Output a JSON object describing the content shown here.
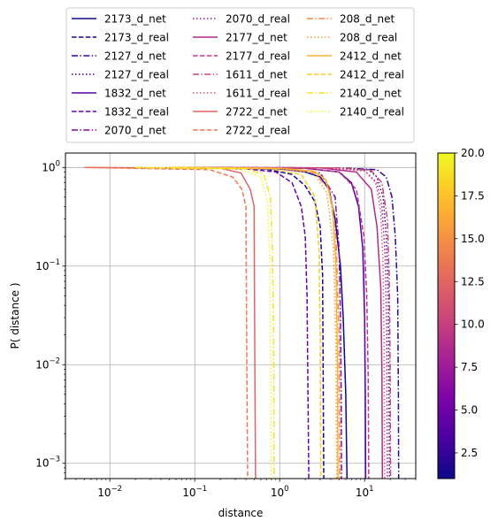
{
  "chart_data": {
    "type": "line",
    "title": "",
    "xlabel": "distance",
    "ylabel": "P( distance )",
    "xscale": "log",
    "yscale": "log",
    "xlim": [
      0.003,
      40
    ],
    "ylim": [
      0.0007,
      1.4
    ],
    "x_ticks": [
      {
        "value": 0.01,
        "base": "10",
        "exp": "−2"
      },
      {
        "value": 0.1,
        "base": "10",
        "exp": "−1"
      },
      {
        "value": 1,
        "base": "10",
        "exp": "0"
      },
      {
        "value": 10,
        "base": "10",
        "exp": "1"
      }
    ],
    "y_ticks": [
      {
        "value": 0.001,
        "base": "10",
        "exp": "−3"
      },
      {
        "value": 0.01,
        "base": "10",
        "exp": "−2"
      },
      {
        "value": 0.1,
        "base": "10",
        "exp": "−1"
      },
      {
        "value": 1,
        "base": "10",
        "exp": "0"
      }
    ],
    "grid": true,
    "legend_position": "top",
    "colorbar": {
      "min": 1,
      "max": 20,
      "ticks": [
        "2.5",
        "5.0",
        "7.5",
        "10.0",
        "12.5",
        "15.0",
        "17.5",
        "20.0"
      ],
      "colormap": "plasma"
    },
    "series": [
      {
        "name": "2173_d_net",
        "color": "#0d0887",
        "dash": "solid",
        "x": [
          0.05,
          1.0,
          2.0,
          3.0,
          3.8,
          4.5,
          5.2,
          5.6,
          6.0,
          6.2
        ],
        "y": [
          1.0,
          0.97,
          0.9,
          0.8,
          0.6,
          0.3,
          0.1,
          0.03,
          0.005,
          0.0007
        ]
      },
      {
        "name": "2173_d_real",
        "color": "#1b068d",
        "dash": "dashed",
        "x": [
          0.05,
          0.7,
          1.4,
          2.0,
          2.6,
          3.0,
          3.2,
          3.25,
          3.3
        ],
        "y": [
          1.0,
          0.96,
          0.85,
          0.65,
          0.45,
          0.25,
          0.08,
          0.01,
          0.0007
        ]
      },
      {
        "name": "2127_d_net",
        "color": "#330597",
        "dash": "dashdot",
        "x": [
          0.05,
          5.0,
          14.0,
          18.0,
          21.0,
          23.0,
          24.5,
          25.0,
          25.2
        ],
        "y": [
          1.0,
          0.99,
          0.95,
          0.8,
          0.5,
          0.2,
          0.05,
          0.005,
          0.0007
        ]
      },
      {
        "name": "2127_d_real",
        "color": "#41049d",
        "dash": "dotted",
        "x": [
          0.05,
          4.0,
          11.0,
          14.0,
          16.5,
          18.0,
          19.0,
          19.4,
          19.6
        ],
        "y": [
          1.0,
          0.99,
          0.95,
          0.8,
          0.5,
          0.2,
          0.05,
          0.005,
          0.0007
        ]
      },
      {
        "name": "1832_d_net",
        "color": "#5302a3",
        "dash": "solid",
        "x": [
          0.05,
          2.0,
          5.0,
          7.0,
          8.5,
          9.5,
          10.0,
          10.2,
          10.3
        ],
        "y": [
          1.0,
          0.98,
          0.9,
          0.7,
          0.4,
          0.15,
          0.03,
          0.005,
          0.0007
        ]
      },
      {
        "name": "1832_d_real",
        "color": "#6a00a8",
        "dash": "dashed",
        "x": [
          0.05,
          0.4,
          0.9,
          1.4,
          1.8,
          2.0,
          2.1,
          2.15,
          2.2
        ],
        "y": [
          1.0,
          0.97,
          0.9,
          0.7,
          0.4,
          0.2,
          0.05,
          0.006,
          0.0007
        ]
      },
      {
        "name": "2070_d_net",
        "color": "#8606a6",
        "dash": "dashdot",
        "x": [
          0.05,
          1.0,
          3.0,
          4.5,
          5.0,
          5.2,
          5.3,
          5.35
        ],
        "y": [
          1.0,
          0.97,
          0.88,
          0.5,
          0.15,
          0.03,
          0.005,
          0.0007
        ]
      },
      {
        "name": "2070_d_real",
        "color": "#a11b9b",
        "dash": "dotted",
        "x": [
          0.05,
          4.0,
          10.0,
          14.0,
          16.0,
          17.5,
          18.2,
          18.5
        ],
        "y": [
          1.0,
          0.99,
          0.93,
          0.7,
          0.4,
          0.12,
          0.02,
          0.0007
        ]
      },
      {
        "name": "2177_d_net",
        "color": "#b12a90",
        "dash": "solid",
        "x": [
          0.05,
          3.0,
          8.0,
          12.0,
          14.0,
          15.5,
          16.0,
          16.2
        ],
        "y": [
          1.0,
          0.99,
          0.9,
          0.6,
          0.25,
          0.06,
          0.008,
          0.0007
        ]
      },
      {
        "name": "2177_d_real",
        "color": "#bf3984",
        "dash": "dashed",
        "x": [
          0.05,
          2.0,
          5.0,
          8.0,
          9.8,
          10.6,
          11.0,
          11.2
        ],
        "y": [
          1.0,
          0.98,
          0.9,
          0.6,
          0.2,
          0.05,
          0.008,
          0.0007
        ]
      },
      {
        "name": "1611_d_net",
        "color": "#cc4778",
        "dash": "dashdot",
        "x": [
          0.05,
          5.0,
          12.0,
          16.0,
          18.5,
          19.5,
          20.0,
          20.2
        ],
        "y": [
          1.0,
          0.99,
          0.93,
          0.7,
          0.3,
          0.08,
          0.01,
          0.0007
        ]
      },
      {
        "name": "1611_d_real",
        "color": "#d8576b",
        "dash": "dotted",
        "x": [
          0.05,
          4.0,
          10.0,
          13.5,
          15.5,
          16.5,
          17.0,
          17.2
        ],
        "y": [
          1.0,
          0.99,
          0.92,
          0.7,
          0.35,
          0.1,
          0.015,
          0.0007
        ]
      },
      {
        "name": "2722_d_net",
        "color": "#e16462",
        "dash": "solid",
        "x": [
          0.005,
          0.2,
          0.35,
          0.45,
          0.5,
          0.51,
          0.52
        ],
        "y": [
          1.0,
          0.98,
          0.88,
          0.6,
          0.4,
          0.01,
          0.0007
        ]
      },
      {
        "name": "2722_d_real",
        "color": "#ed7953",
        "dash": "dashed",
        "x": [
          0.005,
          0.15,
          0.28,
          0.36,
          0.4,
          0.41,
          0.42
        ],
        "y": [
          1.0,
          0.95,
          0.8,
          0.6,
          0.4,
          0.01,
          0.0007
        ]
      },
      {
        "name": "208_d_net",
        "color": "#f48849",
        "dash": "dashdot",
        "x": [
          0.05,
          1.0,
          2.5,
          3.8,
          4.6,
          5.0,
          5.1
        ],
        "y": [
          1.0,
          0.98,
          0.9,
          0.6,
          0.2,
          0.02,
          0.0007
        ]
      },
      {
        "name": "208_d_real",
        "color": "#fb9f3a",
        "dash": "dotted",
        "x": [
          0.05,
          1.0,
          2.5,
          3.6,
          4.3,
          4.6,
          4.7
        ],
        "y": [
          1.0,
          0.98,
          0.88,
          0.55,
          0.15,
          0.015,
          0.0007
        ]
      },
      {
        "name": "2412_d_net",
        "color": "#f9b22f",
        "dash": "solid",
        "x": [
          0.05,
          1.0,
          2.5,
          3.5,
          4.2,
          4.6,
          4.8,
          4.85
        ],
        "y": [
          1.0,
          0.98,
          0.92,
          0.75,
          0.4,
          0.1,
          0.01,
          0.0007
        ]
      },
      {
        "name": "2412_d_real",
        "color": "#fdca26",
        "dash": "dashed",
        "x": [
          0.05,
          0.8,
          1.8,
          2.6,
          2.9,
          3.0,
          3.05
        ],
        "y": [
          1.0,
          0.97,
          0.85,
          0.5,
          0.15,
          0.02,
          0.0007
        ]
      },
      {
        "name": "2140_d_net",
        "color": "#f8e125",
        "dash": "dashdot",
        "x": [
          0.02,
          0.4,
          0.65,
          0.78,
          0.82,
          0.85,
          0.86
        ],
        "y": [
          1.0,
          0.97,
          0.85,
          0.5,
          0.15,
          0.02,
          0.0007
        ]
      },
      {
        "name": "2140_d_real",
        "color": "#f0f921",
        "dash": "dotted",
        "x": [
          0.02,
          0.35,
          0.6,
          0.72,
          0.76,
          0.78,
          0.79
        ],
        "y": [
          1.0,
          0.96,
          0.8,
          0.45,
          0.12,
          0.015,
          0.0007
        ]
      }
    ]
  }
}
